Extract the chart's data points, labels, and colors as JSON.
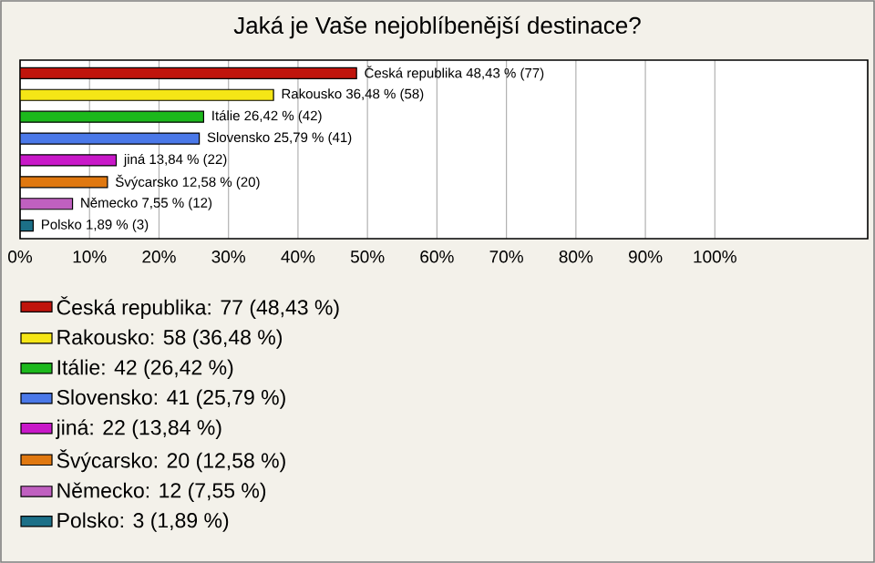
{
  "chart_data": {
    "type": "bar",
    "orientation": "horizontal",
    "title": "Jaká je Vaše nejoblíbenější destinace?",
    "categories": [
      null,
      null,
      null,
      null,
      null,
      null,
      null,
      null
    ],
    "series": [
      {
        "name": "Česká republika: 77 (48,43 %)",
        "color": "#c0140c",
        "values": [
          48.43,
          null,
          null,
          null,
          null,
          null,
          null,
          null
        ],
        "value_labels": [
          "Česká republika 48,43 % (77)",
          null,
          null,
          null,
          null,
          null,
          null,
          null
        ]
      },
      {
        "name": "Rakousko: 58 (36,48 %)",
        "color": "#f5e616",
        "values": [
          null,
          36.48,
          null,
          null,
          null,
          null,
          null,
          null
        ],
        "value_labels": [
          null,
          "Rakousko 36,48 % (58)",
          null,
          null,
          null,
          null,
          null,
          null
        ]
      },
      {
        "name": "Itálie: 42 (26,42 %)",
        "color": "#1cb81c",
        "values": [
          null,
          null,
          26.42,
          null,
          null,
          null,
          null,
          null
        ],
        "value_labels": [
          null,
          null,
          "Itálie 26,42 % (42)",
          null,
          null,
          null,
          null,
          null
        ]
      },
      {
        "name": "Slovensko: 41 (25,79 %)",
        "color": "#4a78e8",
        "values": [
          null,
          null,
          null,
          25.79,
          null,
          null,
          null,
          null
        ],
        "value_labels": [
          null,
          null,
          null,
          "Slovensko 25,79 % (41)",
          null,
          null,
          null,
          null
        ]
      },
      {
        "name": "jiná: 22 (13,84 %)",
        "color": "#c818c8",
        "values": [
          null,
          null,
          null,
          null,
          13.84,
          null,
          null,
          null
        ],
        "value_labels": [
          null,
          null,
          null,
          null,
          "jiná 13,84 % (22)",
          null,
          null,
          null
        ]
      },
      {
        "name": "Švýcarsko: 20 (12,58 %)",
        "color": "#e07810",
        "values": [
          null,
          null,
          null,
          null,
          null,
          12.58,
          null,
          null
        ],
        "value_labels": [
          null,
          null,
          null,
          null,
          null,
          "Švýcarsko 12,58 % (20)",
          null,
          null
        ]
      },
      {
        "name": "Německo: 12 (7,55 %)",
        "color": "#c060c0",
        "values": [
          null,
          null,
          null,
          null,
          null,
          null,
          7.55,
          null
        ],
        "value_labels": [
          null,
          null,
          null,
          null,
          null,
          null,
          "Německo 7,55 % (12)",
          null
        ]
      },
      {
        "name": "Polsko: 3 (1,89 %)",
        "color": "#1c7088",
        "values": [
          null,
          null,
          null,
          null,
          null,
          null,
          null,
          1.89
        ],
        "value_labels": [
          null,
          null,
          null,
          null,
          null,
          null,
          null,
          "Polsko 1,89 % (3)"
        ]
      }
    ],
    "xlim": [
      0,
      122
    ],
    "xticks": [
      {
        "value": 0,
        "label": "0%"
      },
      {
        "value": 10,
        "label": "10%"
      },
      {
        "value": 20,
        "label": "20%"
      },
      {
        "value": 30,
        "label": "30%"
      },
      {
        "value": 40,
        "label": "40%"
      },
      {
        "value": 50,
        "label": "50%"
      },
      {
        "value": 60,
        "label": "60%"
      },
      {
        "value": 70,
        "label": "70%"
      },
      {
        "value": 80,
        "label": "80%"
      },
      {
        "value": 90,
        "label": "90%"
      },
      {
        "value": 100,
        "label": "100%"
      }
    ],
    "grid": "x",
    "legend": "bottom"
  }
}
